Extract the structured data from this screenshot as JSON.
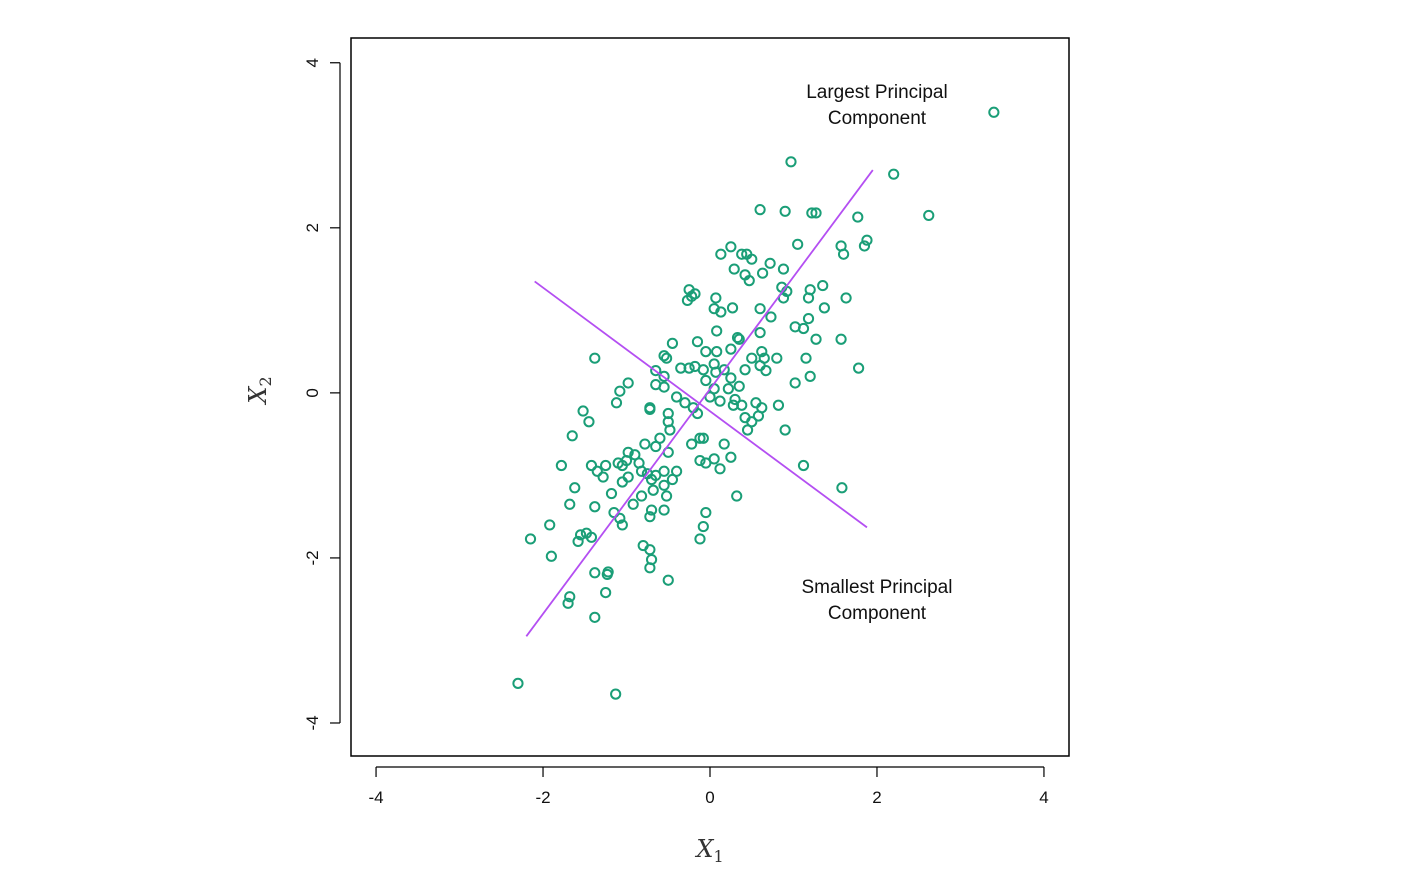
{
  "chart_data": {
    "type": "scatter",
    "title": "",
    "xlabel": "X",
    "xlabel_sub": "1",
    "ylabel": "X",
    "ylabel_sub": "2",
    "xlim": [
      -4.3,
      4.3
    ],
    "ylim": [
      -4.4,
      4.3
    ],
    "xticks": [
      -4,
      -2,
      0,
      2,
      4
    ],
    "yticks": [
      -4,
      -2,
      0,
      2,
      4
    ],
    "xtick_labels": [
      "-4",
      "-2",
      "0",
      "2",
      "4"
    ],
    "ytick_labels": [
      "-4",
      "-2",
      "0",
      "2",
      "4"
    ],
    "grid": false,
    "colors": {
      "points": "#1a9e77",
      "lines": "#b44ff2",
      "frame": "#000000"
    },
    "annotations": [
      {
        "lines": [
          "Largest Principal",
          "Component"
        ],
        "x": 2.0,
        "y": 3.5
      },
      {
        "lines": [
          "Smallest Principal",
          "Component"
        ],
        "x": 2.0,
        "y": -2.5
      }
    ],
    "principal_components": [
      {
        "name": "Largest Principal Component",
        "x": [
          -2.2,
          1.95
        ],
        "y": [
          -2.95,
          2.7
        ]
      },
      {
        "name": "Smallest Principal Component",
        "x": [
          -2.1,
          1.88
        ],
        "y": [
          1.35,
          -1.63
        ]
      }
    ],
    "points": [
      [
        3.4,
        3.4
      ],
      [
        2.2,
        2.65
      ],
      [
        0.97,
        2.8
      ],
      [
        2.62,
        2.15
      ],
      [
        0.6,
        2.22
      ],
      [
        0.9,
        2.2
      ],
      [
        1.22,
        2.18
      ],
      [
        1.27,
        2.18
      ],
      [
        1.77,
        2.13
      ],
      [
        1.05,
        1.8
      ],
      [
        1.57,
        1.78
      ],
      [
        1.6,
        1.68
      ],
      [
        1.88,
        1.85
      ],
      [
        1.85,
        1.78
      ],
      [
        0.25,
        1.77
      ],
      [
        0.13,
        1.68
      ],
      [
        0.38,
        1.68
      ],
      [
        0.44,
        1.68
      ],
      [
        0.5,
        1.62
      ],
      [
        0.29,
        1.5
      ],
      [
        0.42,
        1.43
      ],
      [
        0.47,
        1.36
      ],
      [
        0.63,
        1.45
      ],
      [
        0.72,
        1.57
      ],
      [
        0.88,
        1.5
      ],
      [
        0.86,
        1.28
      ],
      [
        0.92,
        1.23
      ],
      [
        0.88,
        1.15
      ],
      [
        1.2,
        1.25
      ],
      [
        1.18,
        1.15
      ],
      [
        1.35,
        1.3
      ],
      [
        1.63,
        1.15
      ],
      [
        1.37,
        1.03
      ],
      [
        0.73,
        0.92
      ],
      [
        1.18,
        0.9
      ],
      [
        1.02,
        0.8
      ],
      [
        1.12,
        0.78
      ],
      [
        1.27,
        0.65
      ],
      [
        1.57,
        0.65
      ],
      [
        -0.25,
        1.25
      ],
      [
        -0.22,
        1.17
      ],
      [
        -0.18,
        1.2
      ],
      [
        -0.27,
        1.12
      ],
      [
        0.07,
        1.15
      ],
      [
        0.05,
        1.02
      ],
      [
        0.13,
        0.98
      ],
      [
        0.27,
        1.03
      ],
      [
        0.6,
        1.02
      ],
      [
        0.08,
        0.75
      ],
      [
        0.33,
        0.67
      ],
      [
        0.35,
        0.65
      ],
      [
        0.6,
        0.73
      ],
      [
        0.62,
        0.5
      ],
      [
        0.65,
        0.42
      ],
      [
        -0.15,
        0.62
      ],
      [
        -0.05,
        0.5
      ],
      [
        0.08,
        0.5
      ],
      [
        0.25,
        0.53
      ],
      [
        0.5,
        0.42
      ],
      [
        0.6,
        0.33
      ],
      [
        0.8,
        0.42
      ],
      [
        1.15,
        0.42
      ],
      [
        0.67,
        0.27
      ],
      [
        1.78,
        0.3
      ],
      [
        1.2,
        0.2
      ],
      [
        1.02,
        0.12
      ],
      [
        0.42,
        0.28
      ],
      [
        0.17,
        0.28
      ],
      [
        0.25,
        0.18
      ],
      [
        -0.45,
        0.6
      ],
      [
        -0.55,
        0.45
      ],
      [
        -0.52,
        0.42
      ],
      [
        -0.35,
        0.3
      ],
      [
        -0.25,
        0.3
      ],
      [
        -0.18,
        0.32
      ],
      [
        -0.08,
        0.28
      ],
      [
        0.05,
        0.35
      ],
      [
        0.07,
        0.25
      ],
      [
        -0.05,
        0.15
      ],
      [
        -0.65,
        0.27
      ],
      [
        -0.55,
        0.2
      ],
      [
        -0.65,
        0.1
      ],
      [
        -0.55,
        0.07
      ],
      [
        -0.4,
        -0.05
      ],
      [
        -0.3,
        -0.12
      ],
      [
        -0.2,
        -0.18
      ],
      [
        -0.15,
        -0.25
      ],
      [
        0.0,
        -0.05
      ],
      [
        0.12,
        -0.1
      ],
      [
        0.05,
        0.05
      ],
      [
        0.22,
        0.05
      ],
      [
        0.35,
        0.08
      ],
      [
        0.3,
        -0.08
      ],
      [
        0.28,
        -0.15
      ],
      [
        0.38,
        -0.15
      ],
      [
        0.42,
        -0.3
      ],
      [
        0.5,
        -0.35
      ],
      [
        0.45,
        -0.45
      ],
      [
        0.55,
        -0.12
      ],
      [
        0.62,
        -0.18
      ],
      [
        0.58,
        -0.28
      ],
      [
        0.82,
        -0.15
      ],
      [
        0.9,
        -0.45
      ],
      [
        1.12,
        -0.88
      ],
      [
        1.58,
        -1.15
      ],
      [
        0.32,
        -1.25
      ],
      [
        -1.38,
        0.42
      ],
      [
        -0.98,
        0.12
      ],
      [
        -1.08,
        0.02
      ],
      [
        -1.12,
        -0.12
      ],
      [
        -0.72,
        -0.18
      ],
      [
        -0.72,
        -0.2
      ],
      [
        -0.5,
        -0.25
      ],
      [
        -0.5,
        -0.35
      ],
      [
        -0.48,
        -0.45
      ],
      [
        -1.52,
        -0.22
      ],
      [
        -1.45,
        -0.35
      ],
      [
        -1.65,
        -0.52
      ],
      [
        -1.78,
        -0.88
      ],
      [
        -1.42,
        -0.88
      ],
      [
        -1.35,
        -0.95
      ],
      [
        -1.25,
        -0.88
      ],
      [
        -1.28,
        -1.02
      ],
      [
        -1.18,
        -1.22
      ],
      [
        -1.1,
        -0.85
      ],
      [
        -1.05,
        -0.88
      ],
      [
        -1.0,
        -0.82
      ],
      [
        -0.98,
        -0.72
      ],
      [
        -0.9,
        -0.75
      ],
      [
        -0.85,
        -0.85
      ],
      [
        -0.82,
        -0.95
      ],
      [
        -0.75,
        -0.98
      ],
      [
        -0.7,
        -1.05
      ],
      [
        -0.65,
        -1.0
      ],
      [
        -0.55,
        -0.95
      ],
      [
        -0.4,
        -0.95
      ],
      [
        -0.45,
        -1.05
      ],
      [
        -0.55,
        -1.12
      ],
      [
        -0.68,
        -1.18
      ],
      [
        -0.82,
        -1.25
      ],
      [
        -0.52,
        -1.25
      ],
      [
        -0.6,
        -0.55
      ],
      [
        -0.65,
        -0.65
      ],
      [
        -0.5,
        -0.72
      ],
      [
        -0.78,
        -0.62
      ],
      [
        -0.98,
        -1.02
      ],
      [
        -1.05,
        -1.08
      ],
      [
        -0.22,
        -0.62
      ],
      [
        -0.12,
        -0.55
      ],
      [
        -0.08,
        -0.55
      ],
      [
        -0.12,
        -0.82
      ],
      [
        -0.05,
        -0.85
      ],
      [
        0.05,
        -0.8
      ],
      [
        0.12,
        -0.92
      ],
      [
        0.17,
        -0.62
      ],
      [
        0.25,
        -0.78
      ],
      [
        -1.68,
        -1.35
      ],
      [
        -1.62,
        -1.15
      ],
      [
        -1.38,
        -1.38
      ],
      [
        -1.15,
        -1.45
      ],
      [
        -1.08,
        -1.52
      ],
      [
        -1.05,
        -1.6
      ],
      [
        -0.92,
        -1.35
      ],
      [
        -0.7,
        -1.42
      ],
      [
        -0.72,
        -1.5
      ],
      [
        -0.55,
        -1.42
      ],
      [
        -0.05,
        -1.45
      ],
      [
        -0.08,
        -1.62
      ],
      [
        -0.12,
        -1.77
      ],
      [
        -1.92,
        -1.6
      ],
      [
        -2.15,
        -1.77
      ],
      [
        -1.55,
        -1.72
      ],
      [
        -1.58,
        -1.8
      ],
      [
        -1.48,
        -1.7
      ],
      [
        -1.42,
        -1.75
      ],
      [
        -1.9,
        -1.98
      ],
      [
        -0.8,
        -1.85
      ],
      [
        -0.72,
        -1.9
      ],
      [
        -0.7,
        -2.02
      ],
      [
        -0.72,
        -2.12
      ],
      [
        -0.5,
        -2.27
      ],
      [
        -1.38,
        -2.18
      ],
      [
        -1.22,
        -2.17
      ],
      [
        -1.23,
        -2.2
      ],
      [
        -1.25,
        -2.42
      ],
      [
        -1.68,
        -2.47
      ],
      [
        -1.7,
        -2.55
      ],
      [
        -1.38,
        -2.72
      ],
      [
        -2.3,
        -3.52
      ],
      [
        -1.13,
        -3.65
      ]
    ]
  }
}
